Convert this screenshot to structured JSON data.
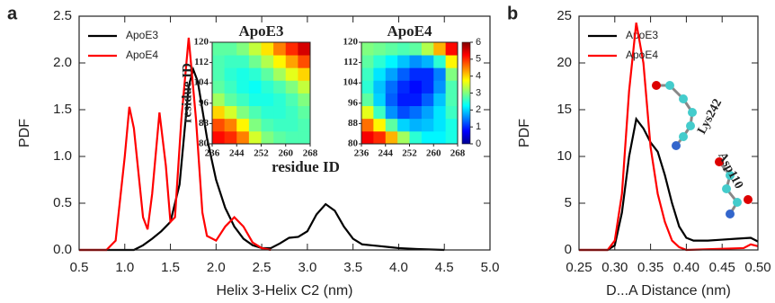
{
  "chart_data": [
    {
      "type": "line",
      "panel_label": "a",
      "xlabel": "Helix 3-Helix C2 (nm)",
      "ylabel": "PDF",
      "xlim": [
        0.5,
        5.0
      ],
      "ylim": [
        0,
        2.5
      ],
      "xticks": [
        0.5,
        {
          "value": 1,
          "label": "1.0"
        },
        1.5,
        {
          "value": 2,
          "label": "2.0"
        },
        2.5,
        {
          "value": 3,
          "label": "3.0"
        },
        3.5,
        {
          "value": 4,
          "label": "4.0"
        },
        4.5,
        {
          "value": 5,
          "label": "5.0"
        }
      ],
      "yticks": [
        {
          "value": 0,
          "label": "0.0"
        },
        0.5,
        {
          "value": 1,
          "label": "1.0"
        },
        1.5,
        {
          "value": 2,
          "label": "2.0"
        },
        2.5
      ],
      "legend": "upper left",
      "series": [
        {
          "name": "ApoE3",
          "color": "#000000",
          "x": [
            0.5,
            1.1,
            1.2,
            1.3,
            1.4,
            1.5,
            1.6,
            1.7,
            1.75,
            1.8,
            1.9,
            2.0,
            2.1,
            2.2,
            2.3,
            2.4,
            2.5,
            2.6,
            2.7,
            2.8,
            2.9,
            3.0,
            3.1,
            3.2,
            3.3,
            3.4,
            3.5,
            3.6,
            3.7,
            3.8,
            3.9,
            4.0,
            4.2,
            4.5
          ],
          "values": [
            0,
            0,
            0.05,
            0.12,
            0.2,
            0.3,
            0.7,
            1.75,
            1.93,
            1.8,
            1.2,
            0.75,
            0.45,
            0.25,
            0.12,
            0.05,
            0.02,
            0.02,
            0.07,
            0.13,
            0.14,
            0.2,
            0.38,
            0.49,
            0.42,
            0.25,
            0.12,
            0.06,
            0.05,
            0.04,
            0.03,
            0.02,
            0.01,
            0
          ]
        },
        {
          "name": "ApoE4",
          "color": "#ff0000",
          "x": [
            0.5,
            0.8,
            0.9,
            1.0,
            1.05,
            1.1,
            1.2,
            1.25,
            1.3,
            1.38,
            1.45,
            1.5,
            1.55,
            1.62,
            1.7,
            1.78,
            1.85,
            1.9,
            2.0,
            2.1,
            2.2,
            2.3,
            2.4,
            2.5,
            2.6
          ],
          "values": [
            0,
            0,
            0.1,
            1.0,
            1.53,
            1.3,
            0.35,
            0.22,
            0.6,
            1.47,
            0.9,
            0.3,
            0.35,
            1.4,
            2.27,
            1.4,
            0.4,
            0.15,
            0.1,
            0.25,
            0.35,
            0.25,
            0.08,
            0.02,
            0
          ]
        }
      ]
    },
    {
      "type": "heatmap",
      "title": "ApoE3",
      "xlabel": "residue ID",
      "ylabel": "residue ID",
      "xlim": [
        236,
        268
      ],
      "ylim": [
        80,
        120
      ],
      "xticks": [
        236,
        244,
        252,
        260,
        268
      ],
      "yticks": [
        80,
        88,
        96,
        104,
        112,
        120
      ],
      "zlim": [
        0,
        6
      ],
      "colormap": "jet",
      "z": [
        [
          5.2,
          5,
          4.5,
          3.5,
          3,
          2.8,
          2.7,
          2.7
        ],
        [
          4.8,
          4.5,
          3.8,
          3,
          2.7,
          2.6,
          2.6,
          2.7
        ],
        [
          4,
          3.5,
          3,
          2.7,
          2.5,
          2.5,
          2.6,
          2.8
        ],
        [
          3.2,
          2.8,
          2.6,
          2.4,
          2.4,
          2.5,
          2.7,
          3
        ],
        [
          2.8,
          2.6,
          2.4,
          2.3,
          2.5,
          2.7,
          3,
          3.4
        ],
        [
          2.7,
          2.5,
          2.4,
          2.5,
          2.8,
          3.2,
          3.6,
          4
        ],
        [
          2.7,
          2.6,
          2.6,
          2.9,
          3.3,
          3.8,
          4.3,
          4.8
        ],
        [
          2.8,
          2.8,
          3,
          3.4,
          3.9,
          4.5,
          5,
          5.5
        ]
      ]
    },
    {
      "type": "heatmap",
      "title": "ApoE4",
      "xlim": [
        236,
        268
      ],
      "ylim": [
        80,
        120
      ],
      "xticks": [
        236,
        244,
        252,
        260,
        268
      ],
      "yticks": [
        80,
        88,
        96,
        104,
        112,
        120
      ],
      "zlim": [
        0,
        6
      ],
      "zticks": [
        0,
        1,
        2,
        3,
        4,
        5,
        6
      ],
      "colormap": "jet",
      "z": [
        [
          5.3,
          5,
          4.2,
          3.2,
          2.5,
          2.2,
          2.2,
          2.4
        ],
        [
          4.6,
          3.8,
          2.8,
          2,
          1.8,
          1.9,
          2.1,
          2.4
        ],
        [
          3.6,
          2.6,
          1.6,
          1.2,
          1.4,
          1.7,
          2.1,
          2.6
        ],
        [
          2.8,
          2,
          1.3,
          0.9,
          0.9,
          1.3,
          1.9,
          2.7
        ],
        [
          2.5,
          1.9,
          1.4,
          1,
          0.8,
          1,
          1.6,
          2.7
        ],
        [
          2.6,
          2.1,
          1.7,
          1.3,
          1,
          1,
          1.5,
          3
        ],
        [
          2.8,
          2.5,
          2.2,
          1.9,
          1.6,
          1.8,
          2.5,
          3.8
        ],
        [
          3,
          2.9,
          2.8,
          2.7,
          2.8,
          3.3,
          4.2,
          5.2
        ]
      ]
    },
    {
      "type": "line",
      "panel_label": "b",
      "xlabel": "D...A Distance (nm)",
      "ylabel": "PDF",
      "xlim": [
        0.25,
        0.5
      ],
      "ylim": [
        0,
        25
      ],
      "xticks": [
        0.25,
        {
          "value": 0.3,
          "label": "0.30"
        },
        0.35,
        {
          "value": 0.4,
          "label": "0.40"
        },
        0.45,
        {
          "value": 0.5,
          "label": "0.50"
        }
      ],
      "yticks": [
        0,
        5,
        10,
        15,
        20,
        25
      ],
      "legend": "upper left",
      "annotations": [
        "Lys242",
        "Asp110"
      ],
      "series": [
        {
          "name": "ApoE3",
          "color": "#000000",
          "x": [
            0.25,
            0.29,
            0.3,
            0.31,
            0.32,
            0.33,
            0.34,
            0.35,
            0.36,
            0.37,
            0.38,
            0.39,
            0.4,
            0.41,
            0.43,
            0.45,
            0.47,
            0.49,
            0.5
          ],
          "values": [
            0,
            0,
            0.5,
            4,
            10,
            14,
            13,
            11.5,
            10.5,
            8,
            5,
            2.5,
            1.3,
            1,
            1,
            1.1,
            1.2,
            1.3,
            0.9
          ]
        },
        {
          "name": "ApoE4",
          "color": "#ff0000",
          "x": [
            0.25,
            0.29,
            0.3,
            0.31,
            0.32,
            0.33,
            0.34,
            0.35,
            0.36,
            0.37,
            0.38,
            0.39,
            0.4,
            0.48,
            0.49,
            0.5
          ],
          "values": [
            0,
            0,
            1,
            6,
            17,
            24.3,
            20,
            11,
            6,
            3,
            1,
            0.3,
            0,
            0.2,
            0.6,
            0.4
          ]
        }
      ]
    }
  ]
}
